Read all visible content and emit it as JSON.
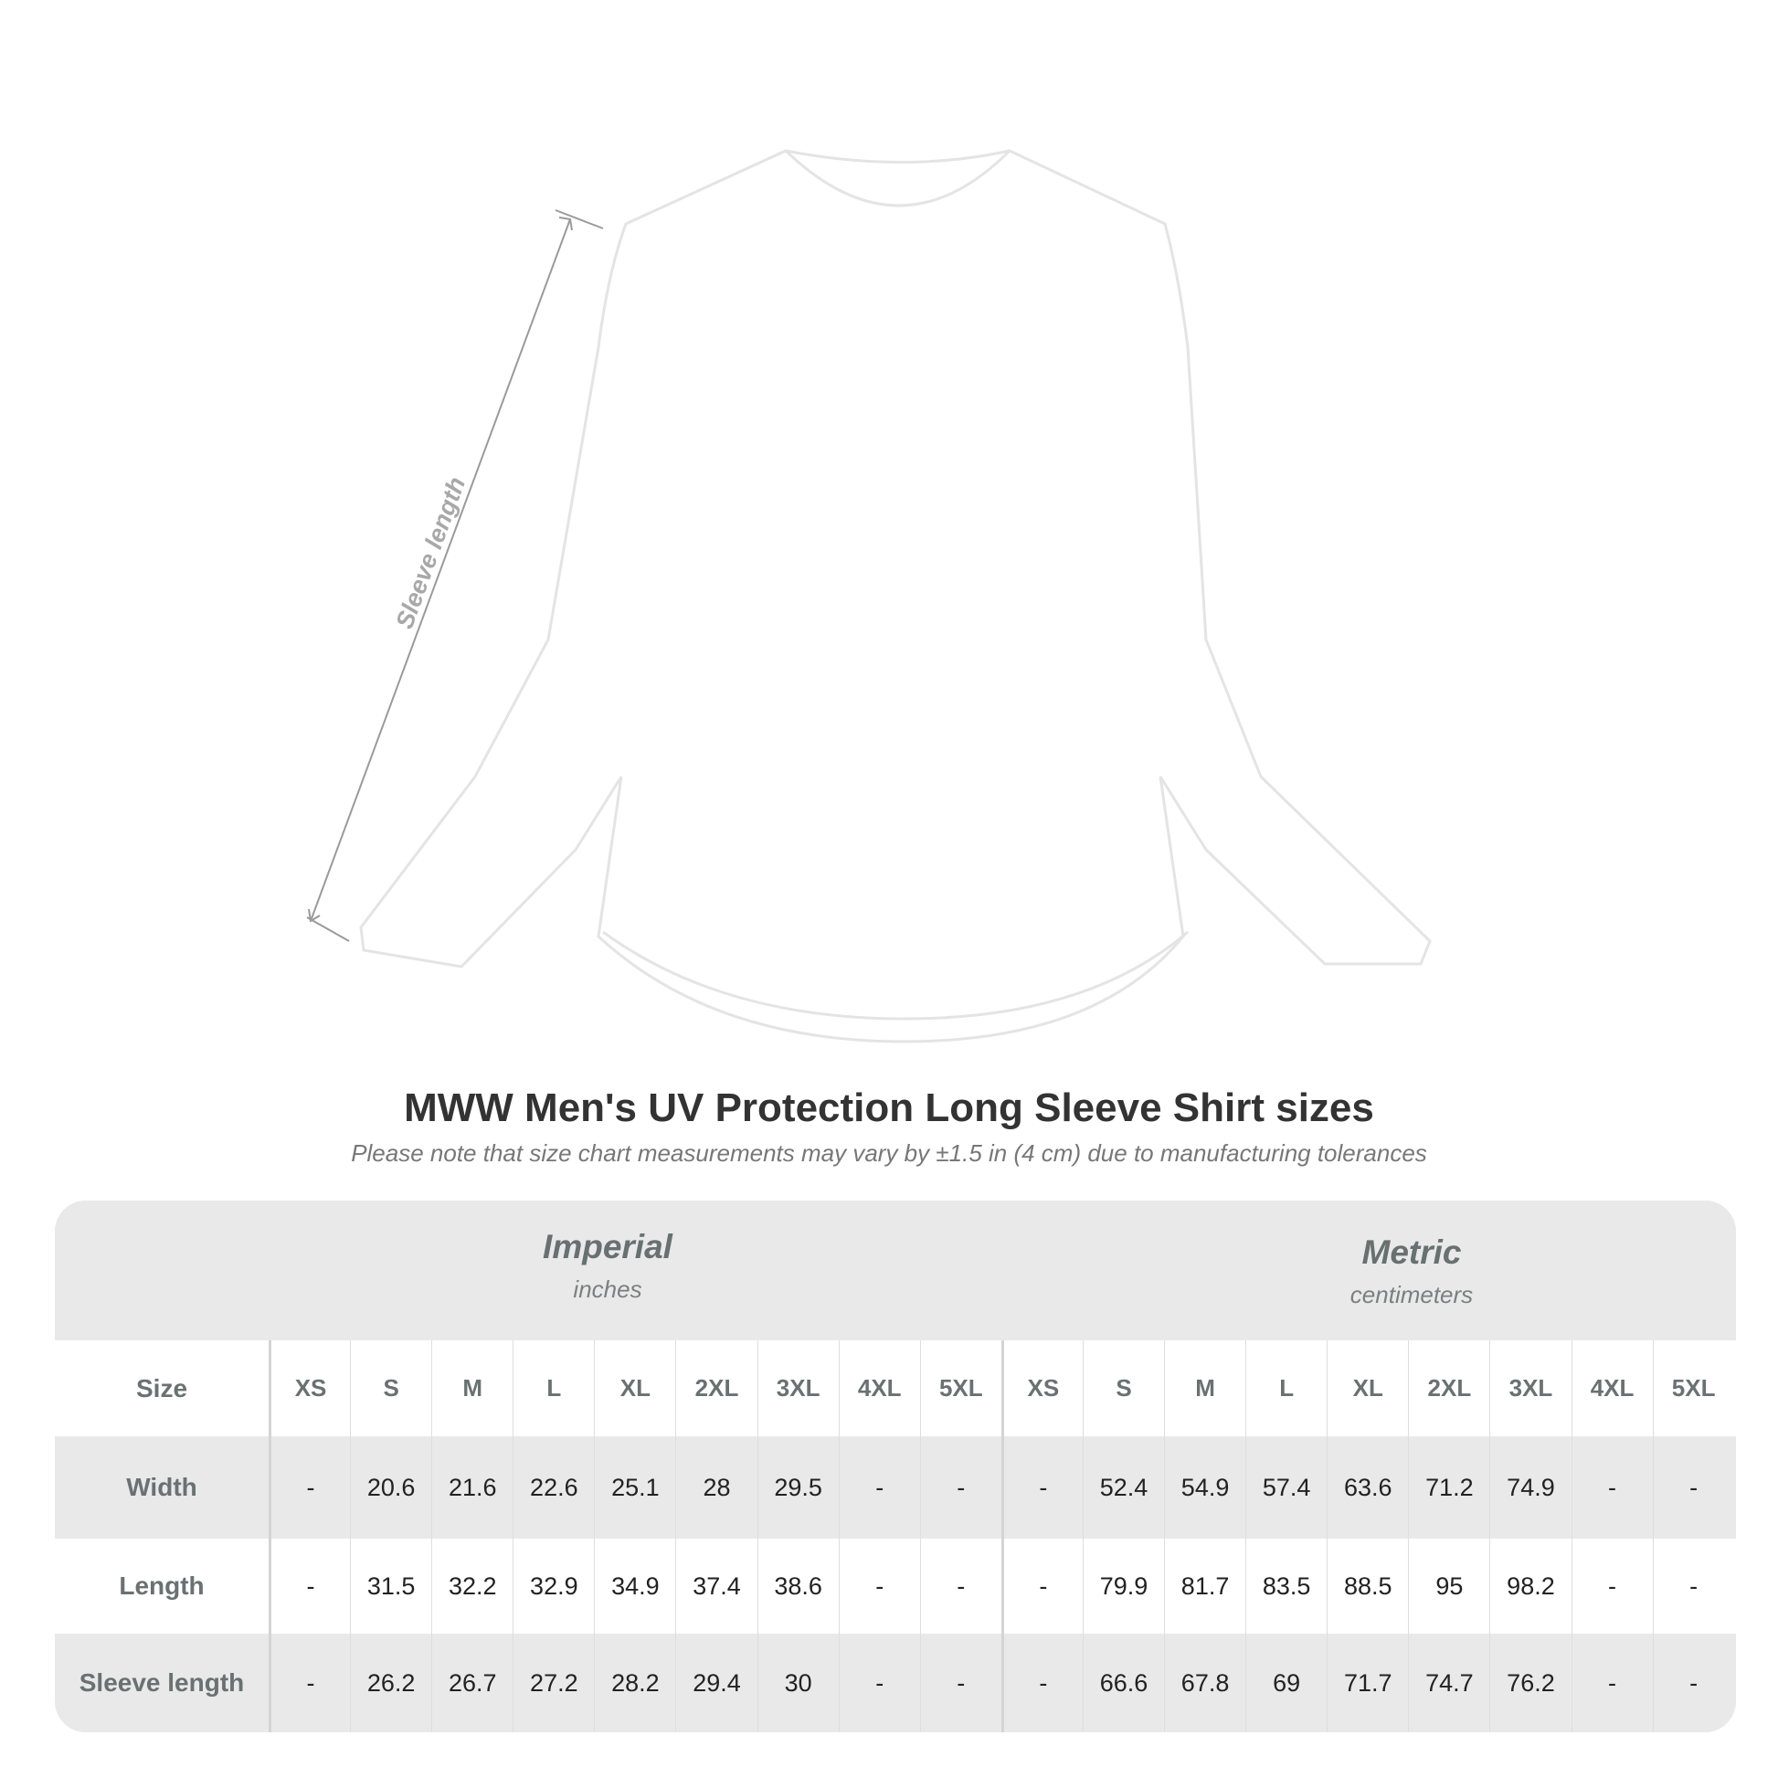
{
  "diagram": {
    "measure_label": "Sleeve length"
  },
  "title": "MWW Men's UV Protection Long Sleeve Shirt sizes",
  "subtitle": "Please note that size chart measurements may vary by ±1.5 in (4 cm) due to manufacturing tolerances",
  "table": {
    "imperial": {
      "name": "Imperial",
      "unit": "inches"
    },
    "metric": {
      "name": "Metric",
      "unit": "centimeters"
    },
    "size_label": "Size",
    "sizes": [
      "XS",
      "S",
      "M",
      "L",
      "XL",
      "2XL",
      "3XL",
      "4XL",
      "5XL"
    ],
    "rows": [
      {
        "label": "Width",
        "imperial": [
          "-",
          "20.6",
          "21.6",
          "22.6",
          "25.1",
          "28",
          "29.5",
          "-",
          "-"
        ],
        "metric": [
          "-",
          "52.4",
          "54.9",
          "57.4",
          "63.6",
          "71.2",
          "74.9",
          "-",
          "-"
        ]
      },
      {
        "label": "Length",
        "imperial": [
          "-",
          "31.5",
          "32.2",
          "32.9",
          "34.9",
          "37.4",
          "38.6",
          "-",
          "-"
        ],
        "metric": [
          "-",
          "79.9",
          "81.7",
          "83.5",
          "88.5",
          "95",
          "98.2",
          "-",
          "-"
        ]
      },
      {
        "label": "Sleeve length",
        "imperial": [
          "-",
          "26.2",
          "26.7",
          "27.2",
          "28.2",
          "29.4",
          "30",
          "-",
          "-"
        ],
        "metric": [
          "-",
          "66.6",
          "67.8",
          "69",
          "71.7",
          "74.7",
          "76.2",
          "-",
          "-"
        ]
      }
    ]
  }
}
